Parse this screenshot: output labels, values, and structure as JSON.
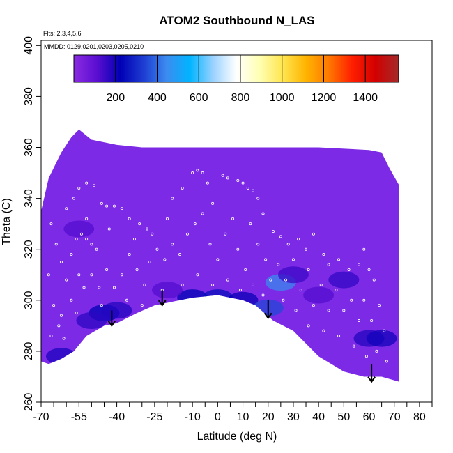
{
  "chart_data": {
    "type": "heatmap",
    "title": "ATOM2 Southbound N_LAS",
    "annotation_line1": "Flts: 2,3,4,5,6",
    "annotation_line2": "MMDD: 0129,0201,0203,0205,0210",
    "xlabel": "Latitude (deg N)",
    "ylabel": "Theta (C)",
    "xlim": [
      -70,
      85
    ],
    "ylim": [
      260,
      402
    ],
    "x_ticks": [
      {
        "value": -70,
        "label": "-70"
      },
      {
        "value": -55,
        "label": "-55"
      },
      {
        "value": -40,
        "label": "-40"
      },
      {
        "value": -25,
        "label": "-25"
      },
      {
        "value": -10,
        "label": "-10"
      },
      {
        "value": 0,
        "label": "0"
      },
      {
        "value": 10,
        "label": "10"
      },
      {
        "value": 20,
        "label": "20"
      },
      {
        "value": 30,
        "label": "30"
      },
      {
        "value": 40,
        "label": "40"
      },
      {
        "value": 50,
        "label": "50"
      },
      {
        "value": 60,
        "label": "60"
      },
      {
        "value": 70,
        "label": "70"
      },
      {
        "value": 80,
        "label": "80"
      }
    ],
    "x_minor_ticks": [
      -65,
      -60,
      -50,
      -45,
      -35,
      -30,
      -20,
      -15,
      -5,
      5,
      15,
      25,
      35,
      45,
      55,
      65,
      75,
      85
    ],
    "y_ticks": [
      {
        "value": 260,
        "label": "260"
      },
      {
        "value": 280,
        "label": "280"
      },
      {
        "value": 300,
        "label": "300"
      },
      {
        "value": 320,
        "label": "320"
      },
      {
        "value": 340,
        "label": "340"
      },
      {
        "value": 360,
        "label": "360"
      },
      {
        "value": 380,
        "label": "380"
      },
      {
        "value": 400,
        "label": "400"
      }
    ],
    "colorbar": {
      "range": [
        0,
        1560
      ],
      "ticks": [
        {
          "value": 200,
          "label": "200"
        },
        {
          "value": 400,
          "label": "400"
        },
        {
          "value": 600,
          "label": "600"
        },
        {
          "value": 800,
          "label": "800"
        },
        {
          "value": 1000,
          "label": "1000"
        },
        {
          "value": 1200,
          "label": "1200"
        },
        {
          "value": 1400,
          "label": "1400"
        }
      ],
      "colors": [
        "#8a2be2",
        "#5a0ed0",
        "#0000b4",
        "#1e3cd2",
        "#3c8cf0",
        "#00b4ff",
        "#9ad2ff",
        "#ffffff",
        "#ffffb4",
        "#ffe650",
        "#ffb400",
        "#ff7800",
        "#ff1e00",
        "#d20000",
        "#a52a2a"
      ]
    },
    "field_color": "#7d2ae6",
    "data_region_outline": [
      [
        -70,
        335
      ],
      [
        -67,
        348
      ],
      [
        -62,
        358
      ],
      [
        -58,
        364
      ],
      [
        -55,
        367
      ],
      [
        -50,
        363
      ],
      [
        -40,
        361
      ],
      [
        -30,
        360
      ],
      [
        -20,
        360
      ],
      [
        -10,
        360
      ],
      [
        0,
        360
      ],
      [
        20,
        360
      ],
      [
        40,
        360
      ],
      [
        60,
        359
      ],
      [
        65,
        358
      ],
      [
        68,
        352
      ],
      [
        72,
        345
      ],
      [
        72,
        268
      ],
      [
        65,
        270
      ],
      [
        58,
        270
      ],
      [
        50,
        272
      ],
      [
        40,
        278
      ],
      [
        30,
        288
      ],
      [
        22,
        292
      ],
      [
        15,
        298
      ],
      [
        10,
        300
      ],
      [
        0,
        302
      ],
      [
        -10,
        301
      ],
      [
        -20,
        299
      ],
      [
        -25,
        298
      ],
      [
        -32,
        295
      ],
      [
        -40,
        291
      ],
      [
        -45,
        290
      ],
      [
        -52,
        286
      ],
      [
        -57,
        280
      ],
      [
        -62,
        277
      ],
      [
        -67,
        275
      ],
      [
        -70,
        276
      ]
    ],
    "patches": [
      {
        "lat": -45,
        "theta": 295,
        "value": 220
      },
      {
        "lat": -40,
        "theta": 296,
        "value": 180
      },
      {
        "lat": -50,
        "theta": 292,
        "value": 170
      },
      {
        "lat": -10,
        "theta": 301,
        "value": 230
      },
      {
        "lat": 0,
        "theta": 301,
        "value": 250
      },
      {
        "lat": 10,
        "theta": 300,
        "value": 210
      },
      {
        "lat": 20,
        "theta": 297,
        "value": 350
      },
      {
        "lat": 25,
        "theta": 307,
        "value": 440
      },
      {
        "lat": 30,
        "theta": 310,
        "value": 150
      },
      {
        "lat": 50,
        "theta": 308,
        "value": 160
      },
      {
        "lat": 60,
        "theta": 285,
        "value": 180
      },
      {
        "lat": 65,
        "theta": 285,
        "value": 200
      },
      {
        "lat": -62,
        "theta": 278,
        "value": 190
      },
      {
        "lat": -20,
        "theta": 304,
        "value": 120
      },
      {
        "lat": -55,
        "theta": 328,
        "value": 120
      },
      {
        "lat": 40,
        "theta": 302,
        "value": 120
      }
    ],
    "samples": [
      {
        "lat": -66,
        "theta": 330
      },
      {
        "lat": -64,
        "theta": 322
      },
      {
        "lat": -62,
        "theta": 315
      },
      {
        "lat": -60,
        "theta": 308
      },
      {
        "lat": -58,
        "theta": 318
      },
      {
        "lat": -56,
        "theta": 324
      },
      {
        "lat": -54,
        "theta": 326
      },
      {
        "lat": -52,
        "theta": 324
      },
      {
        "lat": -50,
        "theta": 322
      },
      {
        "lat": -48,
        "theta": 320
      },
      {
        "lat": -60,
        "theta": 336
      },
      {
        "lat": -57,
        "theta": 340
      },
      {
        "lat": -55,
        "theta": 344
      },
      {
        "lat": -52,
        "theta": 346
      },
      {
        "lat": -49,
        "theta": 345
      },
      {
        "lat": -46,
        "theta": 338
      },
      {
        "lat": -44,
        "theta": 337
      },
      {
        "lat": -41,
        "theta": 337
      },
      {
        "lat": -38,
        "theta": 336
      },
      {
        "lat": -35,
        "theta": 332
      },
      {
        "lat": -31,
        "theta": 330
      },
      {
        "lat": -28,
        "theta": 328
      },
      {
        "lat": -26,
        "theta": 326
      },
      {
        "lat": -18,
        "theta": 340
      },
      {
        "lat": -14,
        "theta": 344
      },
      {
        "lat": -10,
        "theta": 350
      },
      {
        "lat": -8,
        "theta": 351
      },
      {
        "lat": -6,
        "theta": 350
      },
      {
        "lat": -4,
        "theta": 346
      },
      {
        "lat": 2,
        "theta": 349
      },
      {
        "lat": 4,
        "theta": 348
      },
      {
        "lat": 8,
        "theta": 347
      },
      {
        "lat": 10,
        "theta": 346
      },
      {
        "lat": 12,
        "theta": 344
      },
      {
        "lat": 14,
        "theta": 343
      },
      {
        "lat": 16,
        "theta": 340
      },
      {
        "lat": 22,
        "theta": 327
      },
      {
        "lat": 25,
        "theta": 325
      },
      {
        "lat": 28,
        "theta": 322
      },
      {
        "lat": 32,
        "theta": 324
      },
      {
        "lat": 35,
        "theta": 320
      },
      {
        "lat": 42,
        "theta": 318
      },
      {
        "lat": 44,
        "theta": 314
      },
      {
        "lat": 48,
        "theta": 316
      },
      {
        "lat": 52,
        "theta": 312
      },
      {
        "lat": 56,
        "theta": 314
      },
      {
        "lat": 60,
        "theta": 312
      },
      {
        "lat": 62,
        "theta": 308
      },
      {
        "lat": -67,
        "theta": 310
      },
      {
        "lat": -65,
        "theta": 298
      },
      {
        "lat": -63,
        "theta": 290
      },
      {
        "lat": -61,
        "theta": 285
      },
      {
        "lat": -58,
        "theta": 300
      },
      {
        "lat": -56,
        "theta": 295
      },
      {
        "lat": -53,
        "theta": 305
      },
      {
        "lat": -50,
        "theta": 310
      },
      {
        "lat": -47,
        "theta": 305
      },
      {
        "lat": -44,
        "theta": 312
      },
      {
        "lat": -41,
        "theta": 305
      },
      {
        "lat": -38,
        "theta": 310
      },
      {
        "lat": -35,
        "theta": 318
      },
      {
        "lat": -32,
        "theta": 312
      },
      {
        "lat": -29,
        "theta": 306
      },
      {
        "lat": -27,
        "theta": 315
      },
      {
        "lat": -24,
        "theta": 320
      },
      {
        "lat": -21,
        "theta": 316
      },
      {
        "lat": -18,
        "theta": 322
      },
      {
        "lat": -15,
        "theta": 318
      },
      {
        "lat": -12,
        "theta": 326
      },
      {
        "lat": -9,
        "theta": 330
      },
      {
        "lat": -6,
        "theta": 334
      },
      {
        "lat": -3,
        "theta": 322
      },
      {
        "lat": 0,
        "theta": 316
      },
      {
        "lat": 3,
        "theta": 326
      },
      {
        "lat": 6,
        "theta": 332
      },
      {
        "lat": 8,
        "theta": 320
      },
      {
        "lat": 11,
        "theta": 312
      },
      {
        "lat": 13,
        "theta": 330
      },
      {
        "lat": 16,
        "theta": 322
      },
      {
        "lat": 19,
        "theta": 316
      },
      {
        "lat": 21,
        "theta": 308
      },
      {
        "lat": 24,
        "theta": 314
      },
      {
        "lat": 27,
        "theta": 308
      },
      {
        "lat": 30,
        "theta": 316
      },
      {
        "lat": 33,
        "theta": 304
      },
      {
        "lat": 36,
        "theta": 312
      },
      {
        "lat": 38,
        "theta": 298
      },
      {
        "lat": 41,
        "theta": 306
      },
      {
        "lat": 44,
        "theta": 296
      },
      {
        "lat": 47,
        "theta": 304
      },
      {
        "lat": 50,
        "theta": 296
      },
      {
        "lat": 53,
        "theta": 300
      },
      {
        "lat": 56,
        "theta": 292
      },
      {
        "lat": 58,
        "theta": 300
      },
      {
        "lat": 61,
        "theta": 292
      },
      {
        "lat": 64,
        "theta": 298
      },
      {
        "lat": 66,
        "theta": 288
      },
      {
        "lat": -66,
        "theta": 286
      },
      {
        "lat": -62,
        "theta": 294
      },
      {
        "lat": -55,
        "theta": 310
      },
      {
        "lat": -46,
        "theta": 298
      },
      {
        "lat": -36,
        "theta": 300
      },
      {
        "lat": -30,
        "theta": 298
      },
      {
        "lat": -22,
        "theta": 304
      },
      {
        "lat": -14,
        "theta": 306
      },
      {
        "lat": -8,
        "theta": 310
      },
      {
        "lat": -2,
        "theta": 306
      },
      {
        "lat": 4,
        "theta": 308
      },
      {
        "lat": 9,
        "theta": 304
      },
      {
        "lat": 14,
        "theta": 306
      },
      {
        "lat": 18,
        "theta": 302
      },
      {
        "lat": 26,
        "theta": 300
      },
      {
        "lat": 31,
        "theta": 296
      },
      {
        "lat": 36,
        "theta": 290
      },
      {
        "lat": 42,
        "theta": 288
      },
      {
        "lat": 48,
        "theta": 286
      },
      {
        "lat": 54,
        "theta": 282
      },
      {
        "lat": 59,
        "theta": 278
      },
      {
        "lat": 63,
        "theta": 280
      },
      {
        "lat": 67,
        "theta": 276
      },
      {
        "lat": -52,
        "theta": 332
      },
      {
        "lat": -43,
        "theta": 328
      },
      {
        "lat": -33,
        "theta": 324
      },
      {
        "lat": -20,
        "theta": 332
      },
      {
        "lat": -2,
        "theta": 338
      },
      {
        "lat": 18,
        "theta": 334
      },
      {
        "lat": 38,
        "theta": 326
      },
      {
        "lat": 58,
        "theta": 320
      }
    ],
    "arrows": [
      {
        "lat": -42,
        "theta_top": 296,
        "theta_bottom": 290
      },
      {
        "lat": -22,
        "theta_top": 304,
        "theta_bottom": 298
      },
      {
        "lat": 20,
        "theta_top": 300,
        "theta_bottom": 293
      },
      {
        "lat": 61,
        "theta_top": 275,
        "theta_bottom": 268
      }
    ]
  }
}
